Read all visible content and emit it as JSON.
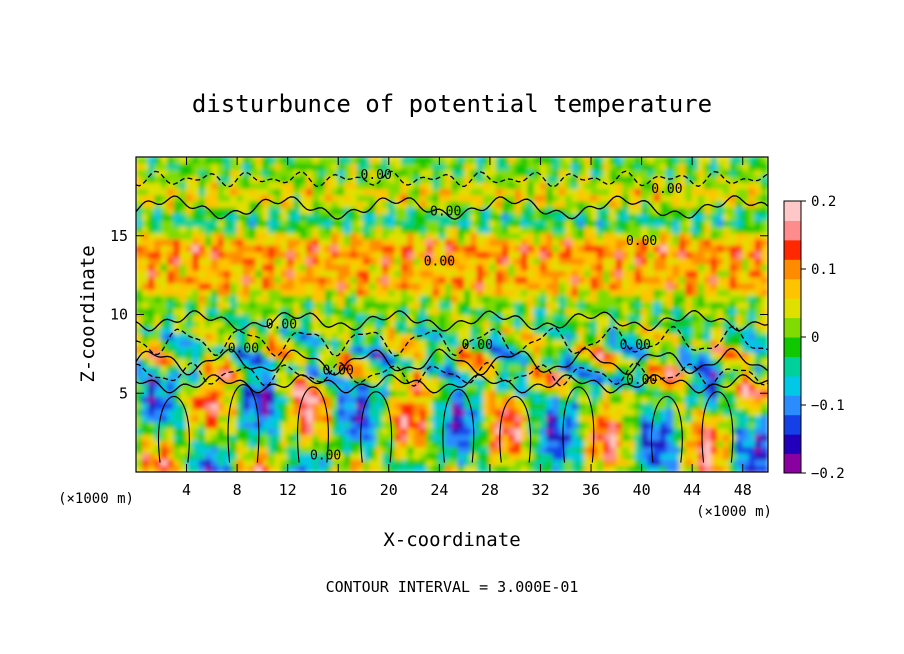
{
  "chart_data": {
    "type": "heatmap",
    "title": "disturbunce of potential temperature",
    "xlabel": "X-coordinate",
    "ylabel": "Z-coordinate",
    "x_unit_left": "(×1000 m)",
    "x_unit_right": "(×1000 m)",
    "xlim": [
      0,
      50
    ],
    "ylim": [
      0,
      20
    ],
    "x_ticks": [
      4,
      8,
      12,
      16,
      20,
      24,
      28,
      32,
      36,
      40,
      44,
      48
    ],
    "y_ticks": [
      5,
      10,
      15
    ],
    "colorbar": {
      "range": [
        -0.2,
        0.2
      ],
      "tick_labels": [
        "0.2",
        "0.1",
        "0",
        "−0.1",
        "−0.2"
      ],
      "tick_values": [
        0.2,
        0.1,
        0,
        -0.1,
        -0.2
      ],
      "colors": [
        "#8b00a0",
        "#2200bb",
        "#1540e8",
        "#2a8cff",
        "#00c8e6",
        "#00d09a",
        "#10c800",
        "#80dc00",
        "#e0e000",
        "#ffc400",
        "#ff8c00",
        "#ff2800",
        "#ff8c8c",
        "#ffc8c8"
      ]
    },
    "contour_label_value": "0.00",
    "footer": "CONTOUR INTERVAL = 3.000E-01"
  }
}
